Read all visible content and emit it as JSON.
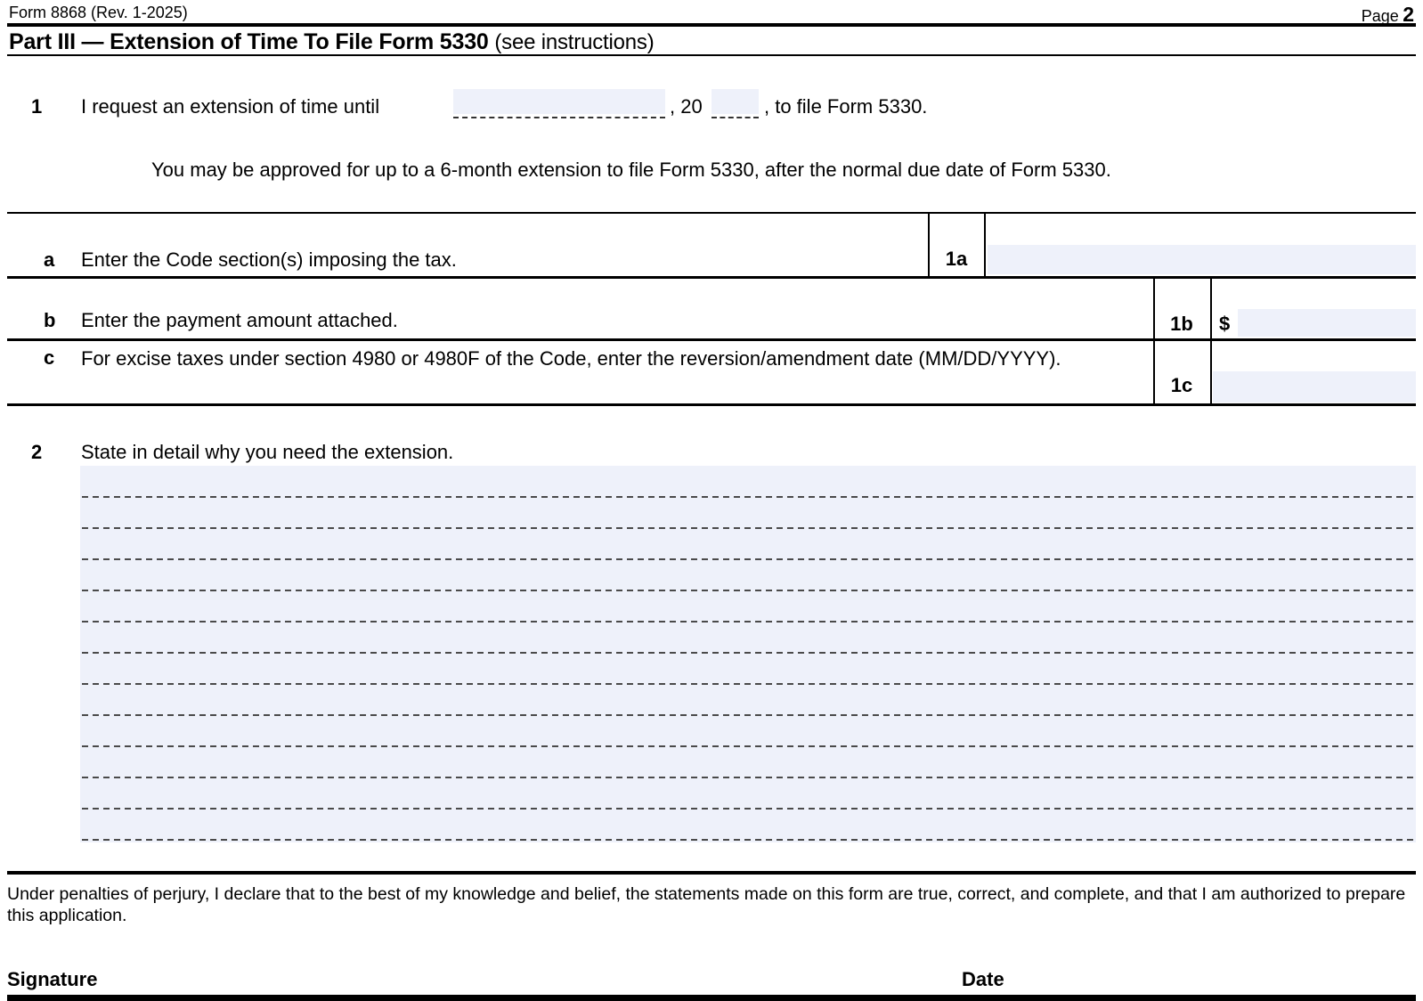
{
  "header": {
    "form_id": "Form 8868 (Rev. 1-2025)",
    "page_label": "Page",
    "page_number": "2"
  },
  "part3": {
    "title": "Part III — Extension of Time To File Form 5330",
    "instructions_note": "(see instructions)"
  },
  "line1": {
    "number": "1",
    "text_before": "I request an extension of time until",
    "date_value": "",
    "text_middle": ", 20",
    "year_value": "",
    "text_after": ", to file Form 5330.",
    "note": "You may be approved for up to a 6-month extension to file Form 5330, after the normal due date of Form 5330."
  },
  "line_a": {
    "letter": "a",
    "label": "Enter the Code section(s) imposing the tax.",
    "box": "1a",
    "value": ""
  },
  "line_b": {
    "letter": "b",
    "label": "Enter the payment amount attached.",
    "box": "1b",
    "currency": "$",
    "value": ""
  },
  "line_c": {
    "letter": "c",
    "label": "For excise taxes under section 4980 or 4980F of the Code, enter the reversion/amendment date (MM/DD/YYYY).",
    "box": "1c",
    "value": ""
  },
  "line2": {
    "number": "2",
    "label": "State in detail why you need the extension.",
    "value": "",
    "rule_count": 12
  },
  "declaration": "Under penalties of perjury, I declare that to the best of my knowledge and belief, the statements made on this form are true, correct, and complete, and that I am authorized to prepare this application.",
  "footer": {
    "signature_label": "Signature",
    "date_label": "Date"
  },
  "colors": {
    "field_bg": "#eef1fa",
    "rule_color": "#000000",
    "dash_color": "#4a4a4a"
  }
}
